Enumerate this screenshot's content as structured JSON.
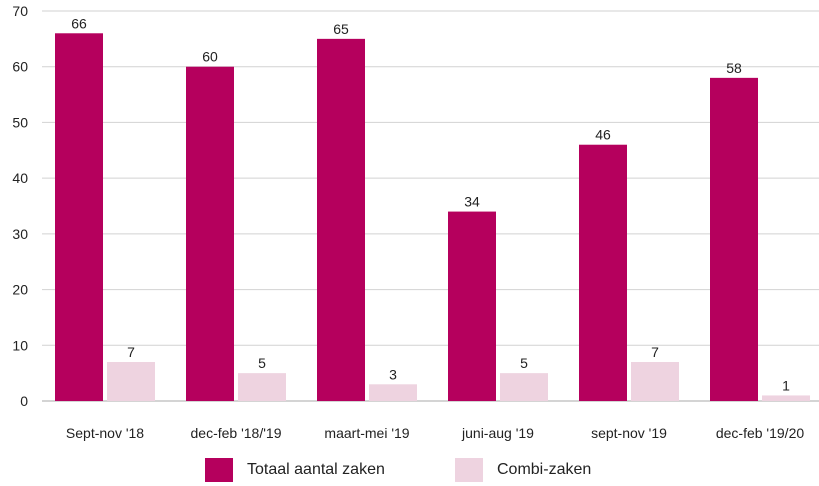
{
  "chart_data": {
    "type": "bar",
    "categories": [
      "Sept-nov '18",
      "dec-feb '18/'19",
      "maart-mei '19",
      "juni-aug '19",
      "sept-nov '19",
      "dec-feb '19/20"
    ],
    "series": [
      {
        "name": "Totaal aantal zaken",
        "values": [
          66,
          60,
          65,
          34,
          46,
          58
        ],
        "color": "#b5005d"
      },
      {
        "name": "Combi-zaken",
        "values": [
          7,
          5,
          3,
          5,
          7,
          1
        ],
        "color": "#eed3e0"
      }
    ],
    "ylim": [
      0,
      70
    ],
    "yticks": [
      0,
      10,
      20,
      30,
      40,
      50,
      60,
      70
    ],
    "grid": true,
    "legend_position": "bottom"
  }
}
